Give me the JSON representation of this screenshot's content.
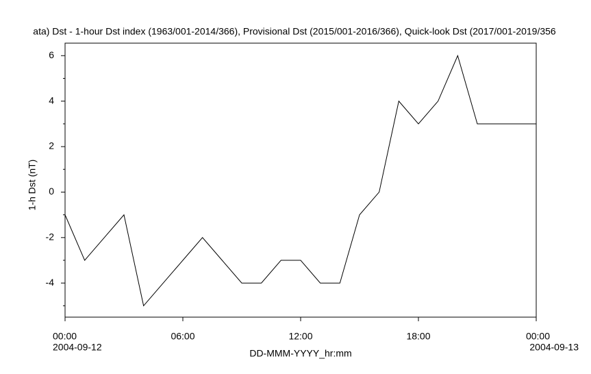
{
  "chart_data": {
    "type": "line",
    "title": "ata)  Dst - 1-hour Dst index (1963/001-2014/366), Provisional Dst (2015/001-2016/366), Quick-look Dst (2017/001-2019/356",
    "x_label": "DD-MMM-YYYY_hr:mm",
    "y_label": "1-h Dst (nT)",
    "start_date": "2004-09-12",
    "end_date": "2004-09-13",
    "x": [
      0,
      1,
      2,
      3,
      4,
      5,
      6,
      7,
      8,
      9,
      10,
      11,
      12,
      13,
      14,
      15,
      16,
      17,
      18,
      19,
      20,
      21,
      22,
      23,
      24
    ],
    "values": [
      -1,
      -3,
      -2,
      -1,
      -5,
      -4,
      -3,
      -2,
      -3,
      -4,
      -4,
      -3,
      -3,
      -4,
      -4,
      -1,
      0,
      4,
      3,
      4,
      6,
      3,
      3,
      3,
      3
    ],
    "color": "#000000",
    "xlim": [
      0,
      24
    ],
    "xticks": [
      {
        "value": 0,
        "label": "00:00"
      },
      {
        "value": 6,
        "label": "06:00"
      },
      {
        "value": 12,
        "label": "12:00"
      },
      {
        "value": 18,
        "label": "18:00"
      },
      {
        "value": 24,
        "label": "00:00"
      }
    ],
    "ylim": [
      -5.5,
      6.55
    ],
    "yticks": [
      -4,
      -2,
      0,
      2,
      4,
      6
    ],
    "yminor_ticks": [
      -5,
      -3,
      -1,
      1,
      3,
      5
    ]
  }
}
